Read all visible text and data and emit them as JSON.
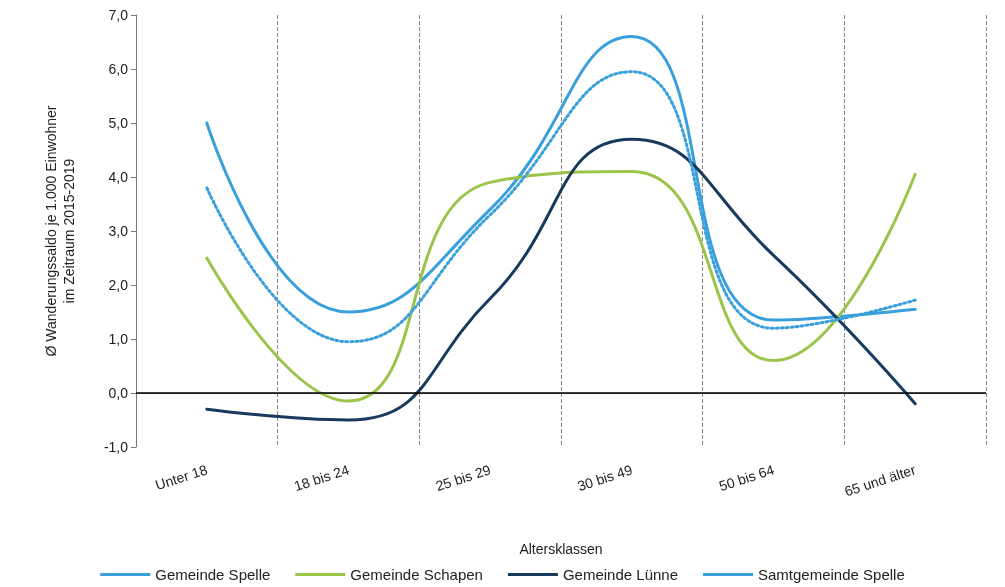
{
  "chart_data": {
    "type": "line",
    "xlabel": "Altersklassen",
    "ylabel": "Ø Wanderungssaldo je 1.000 Einwohner\nim Zeitraum 2015-2019",
    "categories": [
      "Unter 18",
      "18 bis 24",
      "25 bis 29",
      "30 bis 49",
      "50 bis 64",
      "65 und älter"
    ],
    "series": [
      {
        "name": "Gemeinde Spelle",
        "color": "#3aa0dc",
        "values": [
          5.0,
          1.5,
          3.4,
          6.6,
          1.35,
          1.55
        ]
      },
      {
        "name": "Gemeinde Schapen",
        "color": "#9bc54a",
        "values": [
          2.5,
          -0.15,
          3.9,
          4.1,
          0.6,
          4.05
        ]
      },
      {
        "name": "Gemeinde Lünne",
        "color": "#173a5e",
        "values": [
          -0.3,
          -0.5,
          1.75,
          4.7,
          2.55,
          -0.2
        ]
      },
      {
        "name": "Samtgemeinde Spelle",
        "color": "#3aa0dc",
        "line_style": "dotted",
        "values": [
          3.8,
          0.95,
          3.3,
          5.95,
          1.2,
          1.72
        ]
      }
    ],
    "ylim": [
      -1,
      7
    ],
    "yticks": [
      {
        "value": -1,
        "label": "-1,0"
      },
      {
        "value": 0,
        "label": "0,0"
      },
      {
        "value": 1,
        "label": "1,0"
      },
      {
        "value": 2,
        "label": "2,0"
      },
      {
        "value": 3,
        "label": "3,0"
      },
      {
        "value": 4,
        "label": "4,0"
      },
      {
        "value": 5,
        "label": "5,0"
      },
      {
        "value": 6,
        "label": "6,0"
      },
      {
        "value": 7,
        "label": "7,0"
      }
    ],
    "ref_lines": [
      {
        "axis": "y",
        "value": 0,
        "color": "#000000"
      }
    ],
    "grid": "x",
    "legend": "bottom",
    "marker": "none",
    "line_style": "solid"
  }
}
